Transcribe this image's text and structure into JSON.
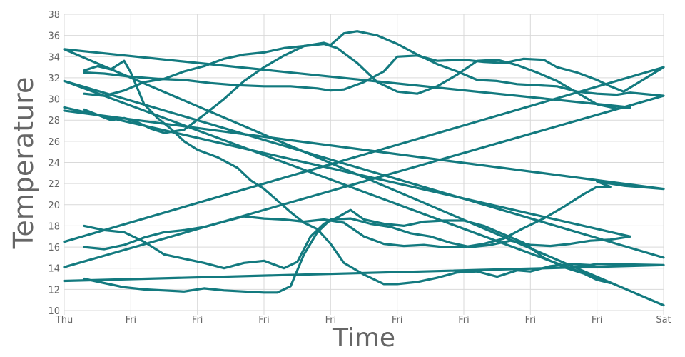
{
  "chart_data": {
    "type": "line",
    "title": "",
    "xlabel": "Time",
    "ylabel": "Temperature",
    "ylim": [
      10,
      38
    ],
    "yticks": [
      10,
      12,
      14,
      16,
      18,
      20,
      22,
      24,
      26,
      28,
      30,
      32,
      34,
      36,
      38
    ],
    "xlim": [
      0,
      9
    ],
    "xticks": [
      {
        "x": 0,
        "label": "Thu"
      },
      {
        "x": 1,
        "label": "Fri"
      },
      {
        "x": 2,
        "label": "Fri"
      },
      {
        "x": 3,
        "label": "Fri"
      },
      {
        "x": 4,
        "label": "Fri"
      },
      {
        "x": 5,
        "label": "Fri"
      },
      {
        "x": 6,
        "label": "Fri"
      },
      {
        "x": 7,
        "label": "Fri"
      },
      {
        "x": 8,
        "label": "Fri"
      },
      {
        "x": 9,
        "label": "Sat"
      }
    ],
    "grid": true,
    "legend": "none",
    "line_color": "#137a7f",
    "series": [
      {
        "points": [
          [
            0.3,
            32.7
          ],
          [
            0.5,
            33.1
          ],
          [
            0.7,
            32.8
          ],
          [
            0.9,
            33.6
          ],
          [
            1.0,
            32.5
          ],
          [
            1.2,
            29.5
          ],
          [
            1.4,
            28.2
          ],
          [
            1.6,
            27.2
          ],
          [
            1.8,
            26.0
          ],
          [
            2.0,
            25.2
          ],
          [
            2.3,
            24.5
          ],
          [
            2.6,
            23.5
          ],
          [
            2.8,
            22.3
          ],
          [
            3.0,
            21.5
          ],
          [
            3.2,
            20.4
          ],
          [
            3.4,
            19.3
          ],
          [
            3.6,
            18.3
          ],
          [
            3.8,
            17.7
          ],
          [
            4.0,
            16.3
          ],
          [
            4.2,
            14.5
          ],
          [
            4.5,
            13.4
          ],
          [
            4.8,
            12.5
          ],
          [
            5.0,
            12.5
          ],
          [
            5.3,
            12.7
          ],
          [
            5.6,
            13.1
          ],
          [
            5.9,
            13.6
          ],
          [
            6.2,
            13.7
          ],
          [
            6.5,
            13.2
          ],
          [
            6.8,
            13.8
          ],
          [
            7.0,
            13.7
          ],
          [
            7.3,
            14.2
          ],
          [
            7.6,
            14.4
          ],
          [
            7.9,
            14.3
          ],
          [
            8.0,
            14.4
          ],
          [
            9.0,
            14.3
          ],
          [
            0.0,
            12.8
          ]
        ]
      },
      {
        "points": [
          [
            0.3,
            32.5
          ],
          [
            0.6,
            32.4
          ],
          [
            1.0,
            32.1
          ],
          [
            1.4,
            31.9
          ],
          [
            1.8,
            31.8
          ],
          [
            2.2,
            31.5
          ],
          [
            2.6,
            31.3
          ],
          [
            3.0,
            31.2
          ],
          [
            3.4,
            31.2
          ],
          [
            3.8,
            31.0
          ],
          [
            4.0,
            30.8
          ],
          [
            4.2,
            30.9
          ],
          [
            4.5,
            31.6
          ],
          [
            4.8,
            32.6
          ],
          [
            5.0,
            34.0
          ],
          [
            5.3,
            34.1
          ],
          [
            5.6,
            33.6
          ],
          [
            6.0,
            33.7
          ],
          [
            6.3,
            33.5
          ],
          [
            6.6,
            33.4
          ],
          [
            6.9,
            33.8
          ],
          [
            7.2,
            33.7
          ],
          [
            7.4,
            33.0
          ],
          [
            7.7,
            32.5
          ],
          [
            8.0,
            31.8
          ],
          [
            8.2,
            31.2
          ],
          [
            8.4,
            30.7
          ],
          [
            9.0,
            33.0
          ],
          [
            0.0,
            16.5
          ]
        ]
      },
      {
        "points": [
          [
            0.3,
            30.5
          ],
          [
            0.6,
            30.3
          ],
          [
            0.9,
            30.8
          ],
          [
            1.2,
            31.6
          ],
          [
            1.5,
            31.9
          ],
          [
            1.8,
            32.6
          ],
          [
            2.1,
            33.1
          ],
          [
            2.4,
            33.8
          ],
          [
            2.7,
            34.2
          ],
          [
            3.0,
            34.4
          ],
          [
            3.3,
            34.8
          ],
          [
            3.6,
            35.0
          ],
          [
            3.9,
            35.3
          ],
          [
            4.0,
            35.1
          ],
          [
            4.2,
            36.2
          ],
          [
            4.4,
            36.4
          ],
          [
            4.7,
            36.0
          ],
          [
            5.0,
            35.2
          ],
          [
            5.3,
            34.2
          ],
          [
            5.6,
            33.3
          ],
          [
            5.9,
            32.6
          ],
          [
            6.2,
            31.8
          ],
          [
            6.5,
            31.7
          ],
          [
            6.8,
            31.4
          ],
          [
            7.1,
            31.3
          ],
          [
            7.4,
            31.2
          ],
          [
            7.7,
            30.7
          ],
          [
            8.0,
            30.5
          ],
          [
            8.3,
            30.4
          ],
          [
            8.5,
            30.6
          ],
          [
            9.0,
            30.3
          ],
          [
            0.0,
            14.1
          ]
        ]
      },
      {
        "points": [
          [
            0.3,
            29.0
          ],
          [
            0.5,
            28.5
          ],
          [
            0.7,
            28.0
          ],
          [
            0.9,
            28.2
          ],
          [
            1.1,
            27.8
          ],
          [
            1.3,
            27.2
          ],
          [
            1.5,
            26.8
          ],
          [
            1.8,
            27.1
          ],
          [
            2.1,
            28.5
          ],
          [
            2.4,
            30.0
          ],
          [
            2.7,
            31.7
          ],
          [
            3.0,
            33.0
          ],
          [
            3.3,
            34.1
          ],
          [
            3.6,
            35.0
          ],
          [
            3.9,
            35.2
          ],
          [
            4.1,
            34.8
          ],
          [
            4.4,
            33.4
          ],
          [
            4.7,
            31.6
          ],
          [
            5.0,
            30.7
          ],
          [
            5.3,
            30.5
          ],
          [
            5.6,
            31.2
          ],
          [
            5.9,
            32.3
          ],
          [
            6.2,
            33.6
          ],
          [
            6.5,
            33.7
          ],
          [
            6.8,
            33.2
          ],
          [
            7.1,
            32.5
          ],
          [
            7.4,
            31.7
          ],
          [
            7.7,
            30.6
          ],
          [
            8.0,
            29.5
          ],
          [
            8.3,
            29.1
          ],
          [
            8.5,
            29.2
          ],
          [
            0.0,
            34.7
          ],
          [
            9.0,
            10.5
          ]
        ]
      },
      {
        "points": [
          [
            0.3,
            18.0
          ],
          [
            0.6,
            17.6
          ],
          [
            0.9,
            17.4
          ],
          [
            1.2,
            16.5
          ],
          [
            1.5,
            15.3
          ],
          [
            1.8,
            14.9
          ],
          [
            2.1,
            14.5
          ],
          [
            2.4,
            14.0
          ],
          [
            2.7,
            14.5
          ],
          [
            3.0,
            14.7
          ],
          [
            3.3,
            14.0
          ],
          [
            3.5,
            14.6
          ],
          [
            3.7,
            17.0
          ],
          [
            3.9,
            18.2
          ],
          [
            4.1,
            18.8
          ],
          [
            4.3,
            19.5
          ],
          [
            4.5,
            18.6
          ],
          [
            4.8,
            18.2
          ],
          [
            5.1,
            18.0
          ],
          [
            5.4,
            18.4
          ],
          [
            5.7,
            18.5
          ],
          [
            6.0,
            18.5
          ],
          [
            6.3,
            18.0
          ],
          [
            6.6,
            17.2
          ],
          [
            6.9,
            16.4
          ],
          [
            7.2,
            15.0
          ],
          [
            7.5,
            14.1
          ],
          [
            7.8,
            13.5
          ],
          [
            8.0,
            12.9
          ],
          [
            8.2,
            12.6
          ],
          [
            0.0,
            31.7
          ],
          [
            9.0,
            15.0
          ]
        ]
      },
      {
        "points": [
          [
            0.3,
            16.0
          ],
          [
            0.6,
            15.8
          ],
          [
            0.9,
            16.2
          ],
          [
            1.2,
            16.9
          ],
          [
            1.5,
            17.4
          ],
          [
            1.8,
            17.6
          ],
          [
            2.1,
            17.9
          ],
          [
            2.4,
            18.4
          ],
          [
            2.7,
            18.9
          ],
          [
            3.0,
            18.7
          ],
          [
            3.3,
            18.6
          ],
          [
            3.6,
            18.4
          ],
          [
            3.9,
            18.6
          ],
          [
            4.2,
            18.3
          ],
          [
            4.5,
            17.0
          ],
          [
            4.8,
            16.3
          ],
          [
            5.1,
            16.1
          ],
          [
            5.4,
            16.2
          ],
          [
            5.7,
            16.0
          ],
          [
            6.0,
            16.0
          ],
          [
            6.3,
            16.3
          ],
          [
            6.6,
            16.8
          ],
          [
            6.9,
            17.8
          ],
          [
            7.2,
            18.7
          ],
          [
            7.5,
            19.8
          ],
          [
            7.8,
            21.0
          ],
          [
            8.0,
            21.7
          ],
          [
            8.2,
            21.7
          ],
          [
            8.0,
            22.2
          ],
          [
            8.4,
            21.8
          ],
          [
            9.0,
            21.5
          ],
          [
            0.0,
            28.9
          ]
        ]
      },
      {
        "points": [
          [
            0.3,
            13.0
          ],
          [
            0.6,
            12.6
          ],
          [
            0.9,
            12.2
          ],
          [
            1.2,
            12.0
          ],
          [
            1.5,
            11.9
          ],
          [
            1.8,
            11.8
          ],
          [
            2.1,
            12.1
          ],
          [
            2.4,
            11.9
          ],
          [
            2.7,
            11.8
          ],
          [
            3.0,
            11.7
          ],
          [
            3.2,
            11.7
          ],
          [
            3.4,
            12.3
          ],
          [
            3.6,
            15.3
          ],
          [
            3.8,
            17.4
          ],
          [
            4.0,
            18.6
          ],
          [
            4.3,
            18.7
          ],
          [
            4.6,
            18.2
          ],
          [
            4.9,
            17.9
          ],
          [
            5.2,
            17.3
          ],
          [
            5.5,
            17.0
          ],
          [
            5.8,
            16.4
          ],
          [
            6.1,
            16.0
          ],
          [
            6.4,
            16.2
          ],
          [
            6.7,
            16.6
          ],
          [
            7.0,
            16.2
          ],
          [
            7.3,
            16.1
          ],
          [
            7.6,
            16.3
          ],
          [
            7.9,
            16.6
          ],
          [
            8.2,
            16.7
          ],
          [
            8.5,
            17.0
          ],
          [
            0.0,
            29.2
          ]
        ]
      }
    ]
  }
}
